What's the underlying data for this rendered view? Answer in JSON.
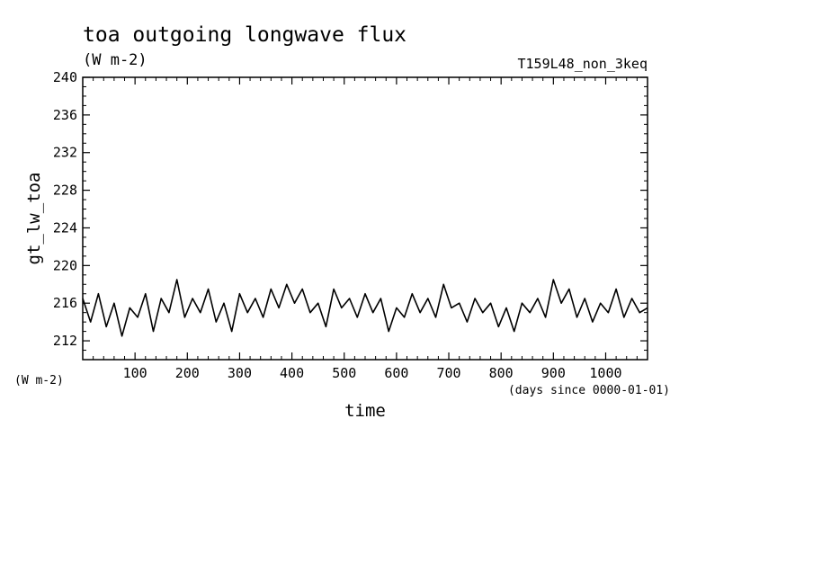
{
  "chart_data": {
    "type": "line",
    "title": "toa outgoing longwave flux",
    "units": "(W m-2)",
    "run_label": "T159L48_non_3keq",
    "ylabel": "gt_lw_toa",
    "y_units_left": "(W m-2)",
    "xlabel": "time",
    "x_units": "(days since 0000-01-01)",
    "xlim": [
      0,
      1080
    ],
    "ylim": [
      210,
      240
    ],
    "x_ticks": [
      100,
      200,
      300,
      400,
      500,
      600,
      700,
      800,
      900,
      1000
    ],
    "y_ticks": [
      212,
      216,
      220,
      224,
      228,
      232,
      236,
      240
    ],
    "grid": false,
    "series": [
      {
        "x": [
          0,
          15,
          30,
          45,
          60,
          75,
          90,
          105,
          120,
          135,
          150,
          165,
          180,
          195,
          210,
          225,
          240,
          255,
          270,
          285,
          300,
          315,
          330,
          345,
          360,
          375,
          390,
          405,
          420,
          435,
          450,
          465,
          480,
          495,
          510,
          525,
          540,
          555,
          570,
          585,
          600,
          615,
          630,
          645,
          660,
          675,
          690,
          705,
          720,
          735,
          750,
          765,
          780,
          795,
          810,
          825,
          840,
          855,
          870,
          885,
          900,
          915,
          930,
          945,
          960,
          975,
          990,
          1005,
          1020,
          1035,
          1050,
          1065,
          1080
        ],
        "values": [
          216.5,
          214.0,
          217.0,
          213.5,
          216.0,
          212.5,
          215.5,
          214.5,
          217.0,
          213.0,
          216.5,
          215.0,
          218.5,
          214.5,
          216.5,
          215.0,
          217.5,
          214.0,
          216.0,
          213.0,
          217.0,
          215.0,
          216.5,
          214.5,
          217.5,
          215.5,
          218.0,
          216.0,
          217.5,
          215.0,
          216.0,
          213.5,
          217.5,
          215.5,
          216.5,
          214.5,
          217.0,
          215.0,
          216.5,
          213.0,
          215.5,
          214.5,
          217.0,
          215.0,
          216.5,
          214.5,
          218.0,
          215.5,
          216.0,
          214.0,
          216.5,
          215.0,
          216.0,
          213.5,
          215.5,
          213.0,
          216.0,
          215.0,
          216.5,
          214.5,
          218.5,
          216.0,
          217.5,
          214.5,
          216.5,
          214.0,
          216.0,
          215.0,
          217.5,
          214.5,
          216.5,
          215.0,
          215.5
        ]
      }
    ]
  }
}
